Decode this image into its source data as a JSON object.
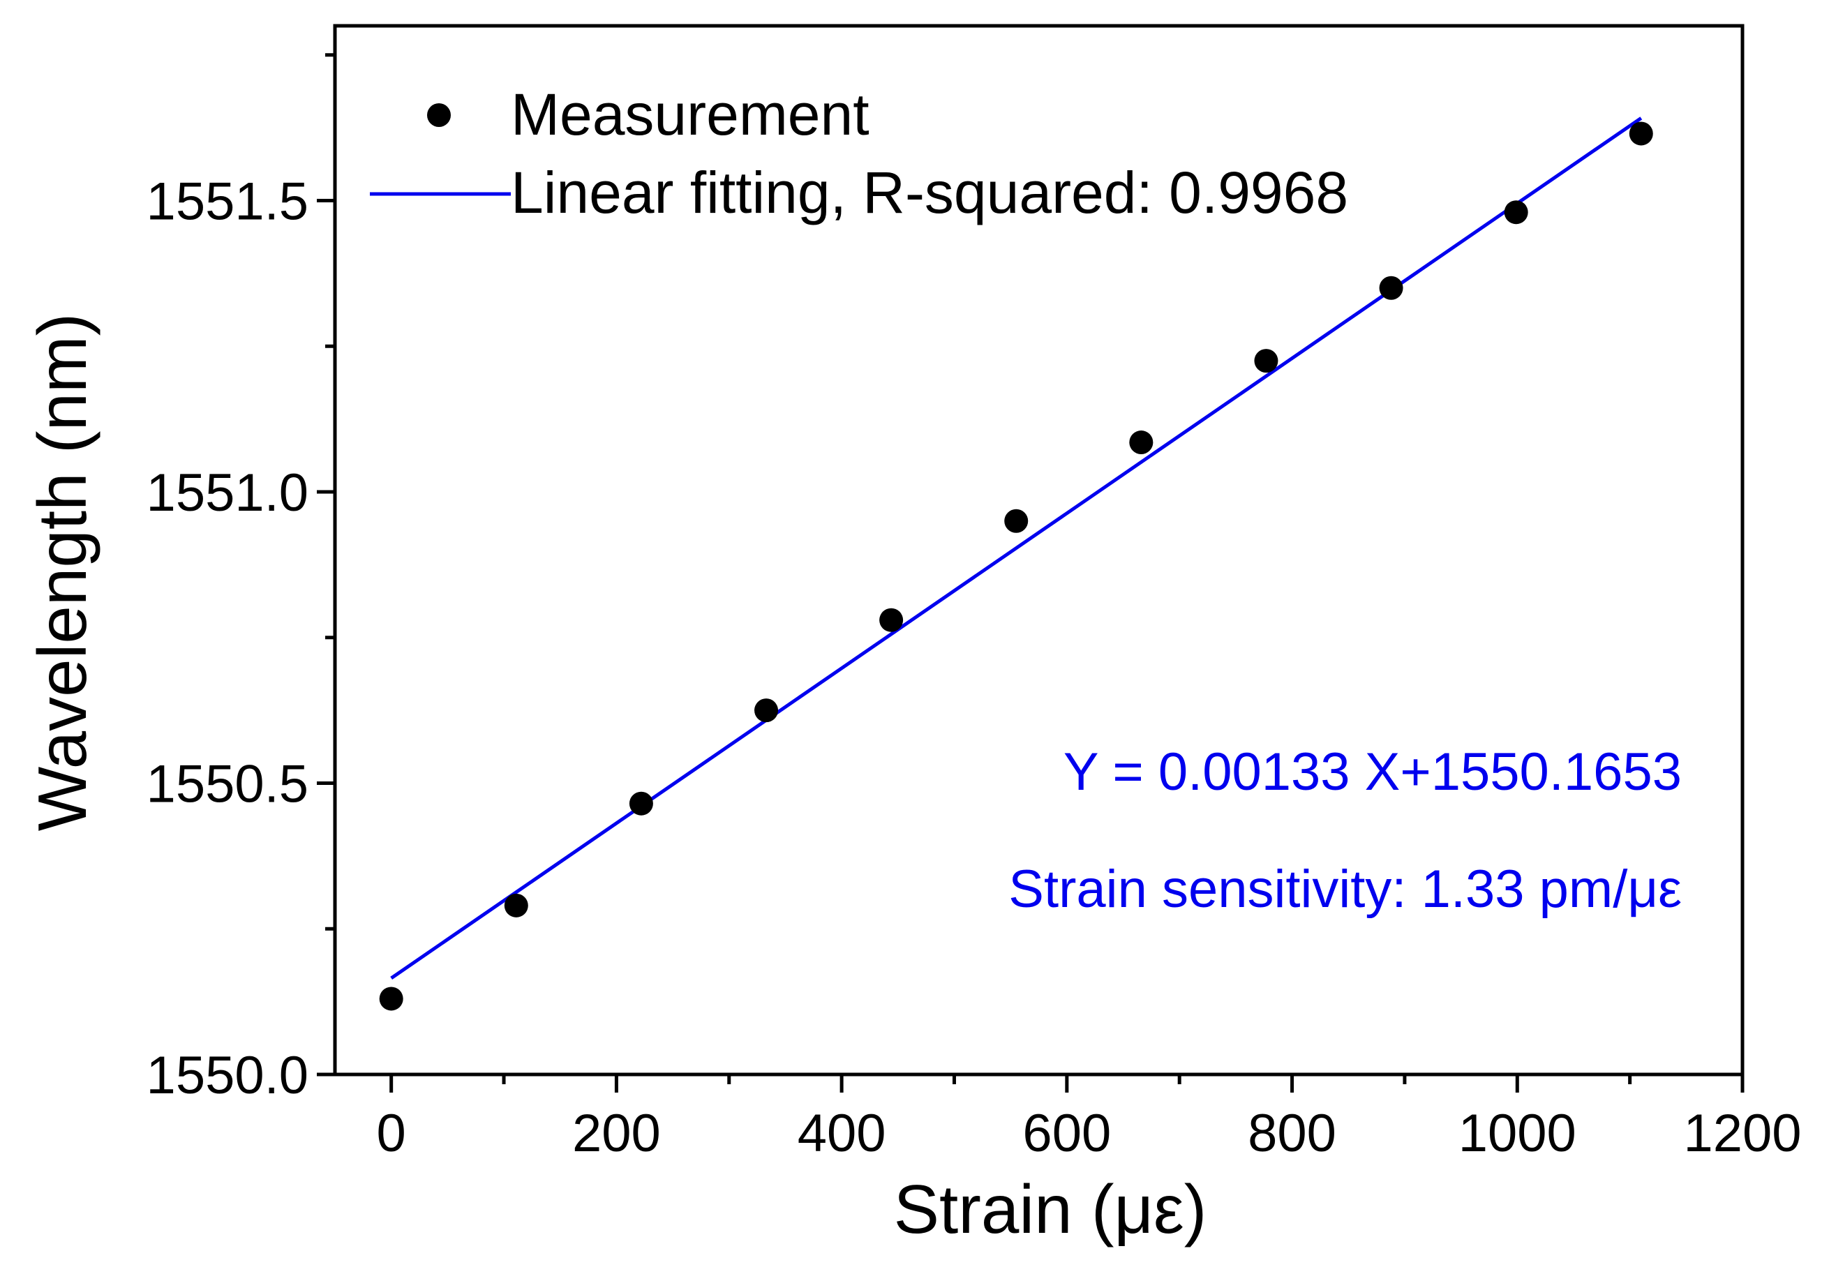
{
  "chart_data": {
    "type": "scatter",
    "xlabel": "Strain (με)",
    "ylabel": "Wavelength (nm)",
    "xlim": [
      -50,
      1200
    ],
    "ylim": [
      1550.0,
      1551.8
    ],
    "x_major_ticks": [
      0,
      200,
      400,
      600,
      800,
      1000,
      1200
    ],
    "x_tick_labels": [
      "0",
      "200",
      "400",
      "600",
      "800",
      "1000",
      "1200"
    ],
    "x_minor_ticks": [
      100,
      300,
      500,
      700,
      900,
      1100
    ],
    "y_major_ticks": [
      1550.0,
      1550.5,
      1551.0,
      1551.5
    ],
    "y_tick_labels": [
      "1550.0",
      "1550.5",
      "1551.0",
      "1551.5"
    ],
    "y_minor_ticks": [
      1550.25,
      1550.75,
      1551.25,
      1551.75
    ],
    "grid": false,
    "legend_position": "top-left",
    "series": [
      {
        "name": "Measurement",
        "kind": "scatter",
        "color": "#000000",
        "x": [
          0,
          111,
          222,
          333,
          444,
          555,
          666,
          777,
          888,
          999,
          1110
        ],
        "y": [
          1550.13,
          1550.29,
          1550.465,
          1550.625,
          1550.78,
          1550.95,
          1551.085,
          1551.225,
          1551.35,
          1551.48,
          1551.615
        ]
      },
      {
        "name": "Linear fitting, R-squared: 0.9968",
        "kind": "line",
        "color": "#0000ee",
        "slope": 0.00133,
        "intercept": 1550.1653,
        "x_range": [
          0,
          1110
        ]
      }
    ],
    "annotations": [
      {
        "text": "Y = 0.00133 X+1550.1653",
        "color": "#0000ee"
      },
      {
        "text": "Strain sensitivity: 1.33 pm/με",
        "color": "#0000ee"
      }
    ]
  }
}
